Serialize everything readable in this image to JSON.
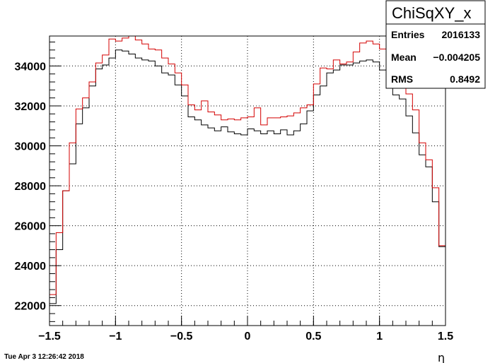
{
  "timestamp": "Tue Apr  3 12:26:42 2018",
  "stats_box": {
    "title": "ChiSqXY_x",
    "rows": [
      {
        "label": "Entries",
        "value": "2016133"
      },
      {
        "label": "Mean",
        "value": "−0.004205"
      },
      {
        "label": "RMS",
        "value": "0.8492"
      }
    ]
  },
  "chart_data": {
    "type": "line",
    "style": "step histogram",
    "title": "",
    "xlabel": "η",
    "ylabel": "",
    "xlim": [
      -1.5,
      1.5
    ],
    "ylim": [
      21000,
      35500
    ],
    "grid": true,
    "x_ticks": [
      -1.5,
      -1,
      -0.5,
      0,
      0.5,
      1,
      1.5
    ],
    "x_tick_labels": [
      "−1.5",
      "−1",
      "−0.5",
      "0",
      "0.5",
      "1",
      "1.5"
    ],
    "y_ticks": [
      22000,
      24000,
      26000,
      28000,
      30000,
      32000,
      34000
    ],
    "y_tick_labels": [
      "22000",
      "24000",
      "26000",
      "28000",
      "30000",
      "32000",
      "34000"
    ],
    "bin_edges": [
      -1.5,
      -1.45,
      -1.4,
      -1.35,
      -1.3,
      -1.25,
      -1.2,
      -1.15,
      -1.1,
      -1.05,
      -1.0,
      -0.95,
      -0.9,
      -0.85,
      -0.8,
      -0.75,
      -0.7,
      -0.65,
      -0.6,
      -0.55,
      -0.5,
      -0.45,
      -0.4,
      -0.35,
      -0.3,
      -0.25,
      -0.2,
      -0.15,
      -0.1,
      -0.05,
      0.0,
      0.05,
      0.1,
      0.15,
      0.2,
      0.25,
      0.3,
      0.35,
      0.4,
      0.45,
      0.5,
      0.55,
      0.6,
      0.65,
      0.7,
      0.75,
      0.8,
      0.85,
      0.9,
      0.95,
      1.0,
      1.05,
      1.1,
      1.15,
      1.2,
      1.25,
      1.3,
      1.35,
      1.4,
      1.45,
      1.5
    ],
    "series": [
      {
        "color": "#000000",
        "values": [
          22100,
          24800,
          27750,
          29100,
          31100,
          31900,
          33000,
          33850,
          34050,
          34400,
          34800,
          34750,
          34600,
          34400,
          34300,
          34250,
          34000,
          33650,
          33550,
          33050,
          32500,
          31450,
          31300,
          31050,
          30900,
          30750,
          30950,
          30700,
          30600,
          30550,
          30850,
          30750,
          30600,
          30750,
          30600,
          30800,
          30550,
          30750,
          31100,
          31750,
          32550,
          33000,
          33650,
          33800,
          34050,
          34050,
          34150,
          34250,
          34300,
          34200,
          33800,
          33300,
          32550,
          32350,
          31500,
          30650,
          29550,
          28950,
          27200,
          24950,
          21550
        ]
      },
      {
        "color": "#d40000",
        "values": [
          22550,
          25650,
          27750,
          30150,
          31850,
          32400,
          33200,
          34150,
          34550,
          35350,
          35250,
          35400,
          35500,
          35300,
          35100,
          34850,
          34800,
          34400,
          34100,
          33650,
          33050,
          32050,
          31800,
          32250,
          31700,
          31550,
          31300,
          31350,
          31300,
          31400,
          31450,
          31900,
          31050,
          31400,
          31400,
          31450,
          31500,
          31650,
          31900,
          32050,
          33100,
          33900,
          33850,
          34300,
          34100,
          34200,
          34700,
          35150,
          35250,
          35100,
          34850,
          34700,
          34000,
          33100,
          32600,
          31800,
          30150,
          29300,
          27900,
          25000,
          22100
        ]
      }
    ]
  }
}
